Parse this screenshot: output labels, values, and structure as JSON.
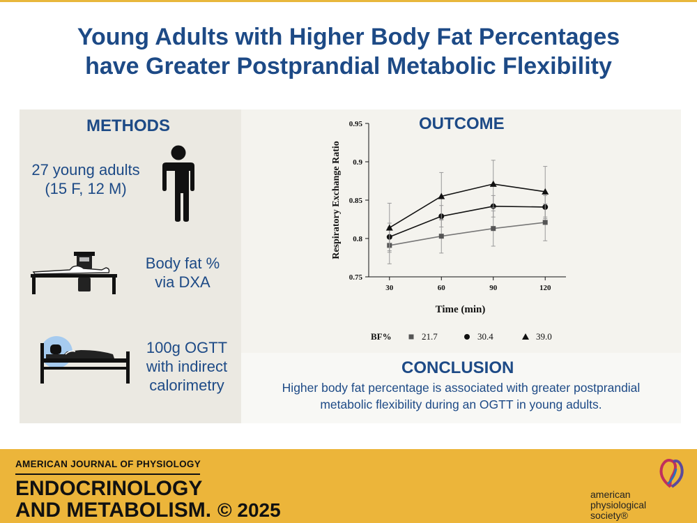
{
  "title": {
    "line1": "Young Adults with Higher Body Fat Percentages",
    "line2": "have Greater Postprandial Metabolic Flexibility"
  },
  "methods": {
    "heading": "METHODS",
    "participants_line1": "27 young adults",
    "participants_line2": "(15 F, 12 M)",
    "dxa_line1": "Body fat %",
    "dxa_line2": "via DXA",
    "ogtt_line1": "100g OGTT",
    "ogtt_line2": "with indirect",
    "ogtt_line3": "calorimetry"
  },
  "outcome": {
    "heading": "OUTCOME"
  },
  "chart_data": {
    "type": "line",
    "xlabel": "Time (min)",
    "ylabel": "Respiratory Exchange Ratio",
    "x": [
      30,
      60,
      90,
      120
    ],
    "x_ticks": [
      "30",
      "60",
      "90",
      "120"
    ],
    "ylim": [
      0.75,
      0.95
    ],
    "y_ticks": [
      "0.75",
      "0.8",
      "0.85",
      "0.9",
      "0.95"
    ],
    "legend_title": "BF%",
    "series": [
      {
        "name": "21.7",
        "marker": "square",
        "color": "#555555",
        "values": [
          0.791,
          0.803,
          0.813,
          0.821
        ],
        "error": [
          0.024,
          0.022,
          0.023,
          0.024
        ]
      },
      {
        "name": "30.4",
        "marker": "circle",
        "color": "#111111",
        "values": [
          0.802,
          0.829,
          0.842,
          0.841
        ],
        "error": [
          0.018,
          0.014,
          0.014,
          0.015
        ]
      },
      {
        "name": "39.0",
        "marker": "triangle",
        "color": "#111111",
        "values": [
          0.814,
          0.855,
          0.871,
          0.861
        ],
        "error": [
          0.032,
          0.031,
          0.031,
          0.033
        ]
      }
    ]
  },
  "conclusion": {
    "heading": "CONCLUSION",
    "line1": "Higher body fat percentage is associated with greater postprandial",
    "line2": "metabolic flexibility during an OGTT in young adults."
  },
  "footer": {
    "journal_line1": "AMERICAN JOURNAL OF PHYSIOLOGY",
    "journal_line2": "ENDOCRINOLOGY",
    "journal_line3": "AND METABOLISM.",
    "copyright": "© 2025",
    "society_line1": "american",
    "society_line2": "physiological",
    "society_line3": "society®"
  },
  "colors": {
    "title_blue": "#1d4a86",
    "footer_gold": "#ecb53a",
    "methods_bg": "#ebe9e2"
  }
}
